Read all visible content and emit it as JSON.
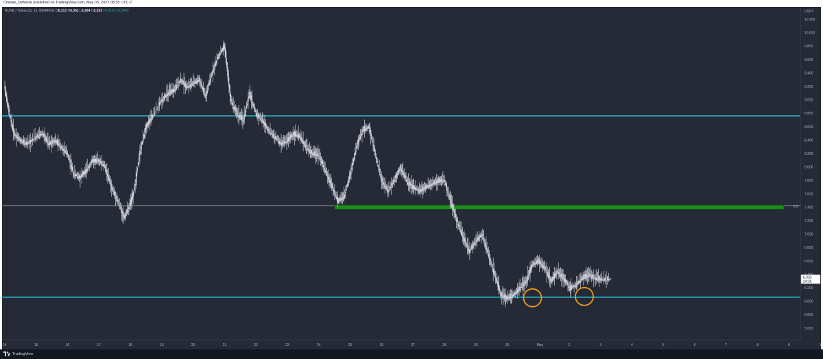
{
  "header": {
    "published": "Chewie_Defense published on TradingView.com, May 03, 2022 08:35 UTC-7"
  },
  "symbol": {
    "name": "RUNE / TetherUS, 1h, BINANCE",
    "open_label": "O",
    "open": "6.313",
    "high_label": "H",
    "high": "6.351",
    "low_label": "L",
    "low": "6.284",
    "close_label": "C",
    "close": "6.333",
    "change": "+0.019 (+0.30%)"
  },
  "price_axis": {
    "currency": "USDT",
    "ticks": [
      "10.200",
      "10.000",
      "9.800",
      "9.600",
      "9.400",
      "9.200",
      "9.000",
      "8.800",
      "8.600",
      "8.400",
      "8.200",
      "8.000",
      "7.800",
      "7.600",
      "7.400",
      "7.200",
      "7.000",
      "6.800",
      "6.600",
      "6.400",
      "6.200",
      "6.000",
      "5.800",
      "5.600"
    ],
    "last_price": "6.333",
    "countdown": "24:26",
    "fib_label": "0.5"
  },
  "time_axis": {
    "ticks": [
      "14",
      "15",
      "16",
      "17",
      "18",
      "19",
      "20",
      "21",
      "22",
      "23",
      "24",
      "25",
      "26",
      "27",
      "28",
      "29",
      "30",
      "May",
      "2",
      "3",
      "4",
      "5",
      "6",
      "7",
      "8",
      "9",
      "10"
    ]
  },
  "branding": {
    "logo_text": "TradingView"
  },
  "colors": {
    "background": "#262a36",
    "candle": "#d1d4dc",
    "support_line": "#22b5c9",
    "zone": "#1e8c1e",
    "circle": "#f39c12",
    "fib_line": "#b2b5be"
  },
  "chart_data": {
    "type": "line",
    "title": "",
    "xlabel": "",
    "ylabel": "",
    "ylim": [
      5.5,
      10.3
    ],
    "x_unit": "day index (14 = Apr 14; May 1 = 31)",
    "series": [
      {
        "values_x": [
          14.0,
          14.1,
          14.3,
          14.5,
          14.7,
          15.0,
          15.2,
          15.4,
          15.6,
          15.8,
          16.0,
          16.2,
          16.4,
          16.6,
          16.8,
          17.0,
          17.2,
          17.4,
          17.6,
          17.8,
          18.0,
          18.1,
          18.3,
          18.5,
          18.7,
          19.0,
          19.2,
          19.4,
          19.6,
          19.8,
          20.0,
          20.2,
          20.4,
          20.6,
          20.8,
          21.0,
          21.1,
          21.2,
          21.4,
          21.6,
          21.8,
          22.0,
          22.2,
          22.4,
          22.6,
          22.8,
          23.0,
          23.2,
          23.4,
          23.6,
          23.8,
          24.0,
          24.2,
          24.4,
          24.6,
          24.8,
          25.0,
          25.2,
          25.4,
          25.6,
          25.8,
          26.0,
          26.2,
          26.4,
          26.6,
          26.8,
          27.0,
          27.2,
          27.4,
          27.6,
          27.8,
          28.0,
          28.2,
          28.4,
          28.6,
          28.8,
          29.0,
          29.2,
          29.4,
          29.6,
          29.8,
          30.0,
          30.2,
          30.4,
          30.6,
          30.8,
          31.0,
          31.2,
          31.4,
          31.6,
          31.8,
          32.0,
          32.2,
          32.4,
          32.6,
          32.8,
          33.0,
          33.3
        ],
        "values": [
          9.2,
          8.9,
          8.5,
          8.4,
          8.35,
          8.45,
          8.5,
          8.35,
          8.4,
          8.3,
          8.2,
          7.9,
          7.85,
          7.95,
          8.1,
          8.1,
          8.0,
          7.7,
          7.5,
          7.25,
          7.45,
          7.6,
          8.2,
          8.6,
          8.75,
          9.0,
          9.1,
          9.15,
          9.3,
          9.2,
          9.25,
          9.3,
          9.05,
          9.4,
          9.65,
          9.8,
          9.4,
          9.0,
          8.8,
          8.7,
          9.1,
          8.8,
          8.7,
          8.55,
          8.45,
          8.35,
          8.4,
          8.5,
          8.45,
          8.3,
          8.2,
          8.2,
          7.95,
          7.75,
          7.5,
          7.55,
          7.9,
          8.3,
          8.55,
          8.6,
          8.2,
          7.8,
          7.65,
          7.8,
          8.0,
          7.8,
          7.7,
          7.65,
          7.7,
          7.75,
          7.8,
          7.8,
          7.5,
          7.2,
          6.95,
          6.75,
          6.9,
          7.0,
          6.7,
          6.4,
          6.1,
          6.05,
          6.1,
          6.2,
          6.3,
          6.55,
          6.6,
          6.5,
          6.3,
          6.45,
          6.35,
          6.2,
          6.25,
          6.35,
          6.4,
          6.35,
          6.33,
          6.333
        ]
      }
    ],
    "horizontal_lines": [
      {
        "price": 8.76,
        "color": "#22b5c9"
      },
      {
        "price": 6.06,
        "color": "#22b5c9"
      },
      {
        "price": 7.42,
        "color": "#b2b5be",
        "label": "0.5"
      }
    ],
    "zones": [
      {
        "x_start": 24.5,
        "x_end": 38.8,
        "price_top": 7.43,
        "price_bottom": 7.37,
        "color": "#1e8c1e"
      }
    ],
    "circles": [
      {
        "x": 30.8,
        "price": 6.05
      },
      {
        "x": 32.45,
        "price": 6.07
      }
    ],
    "grid": true
  }
}
